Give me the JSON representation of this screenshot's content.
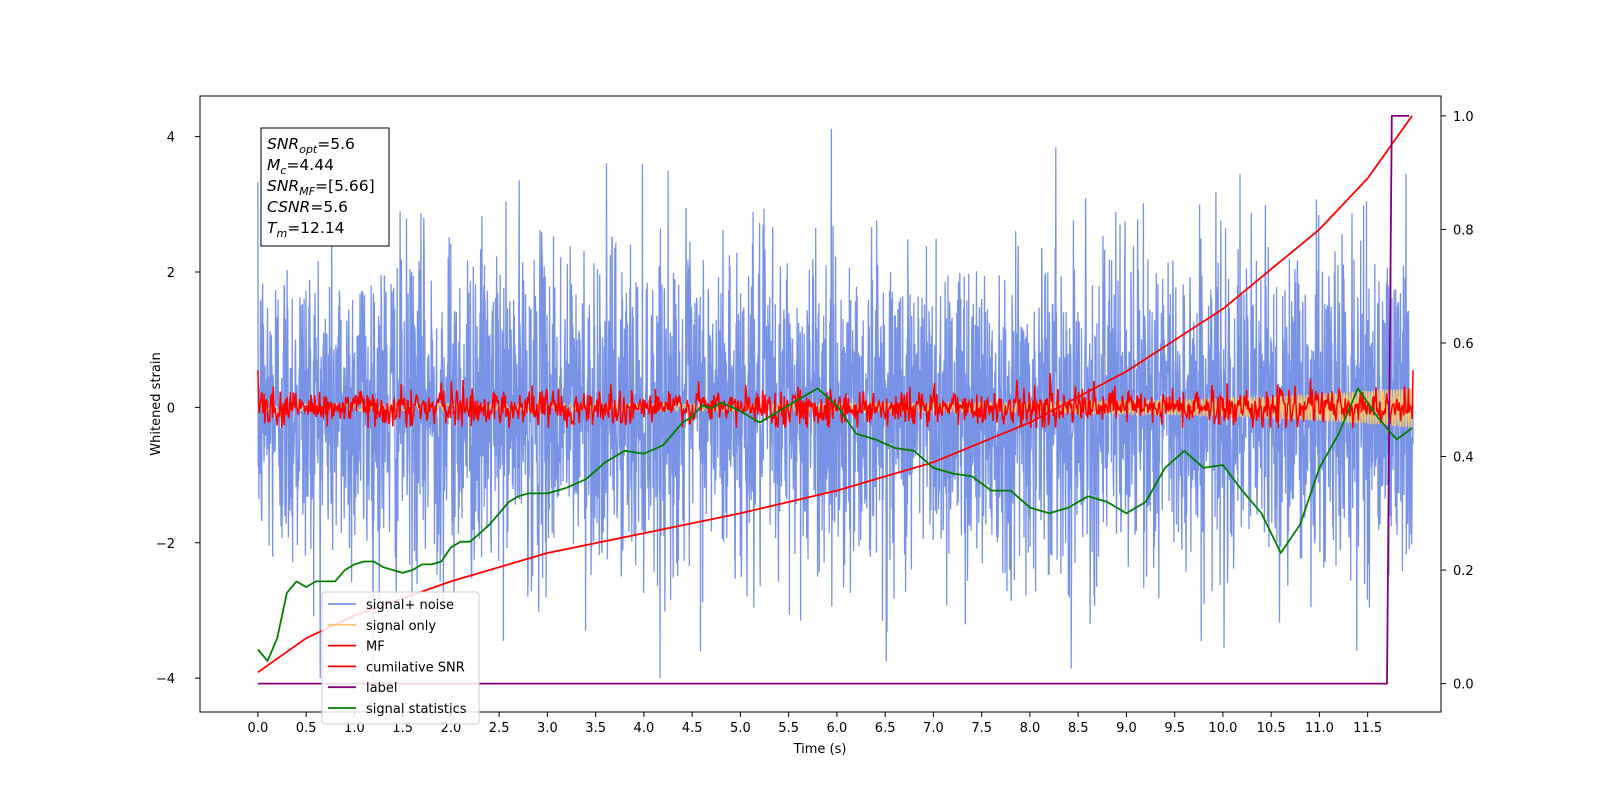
{
  "chart_data": {
    "type": "line",
    "xlabel": "Time (s)",
    "ylabel": "Whitened strain",
    "xlim": [
      -0.6,
      12.26
    ],
    "ylim": [
      -4.5,
      4.6
    ],
    "y2lim": [
      -0.05,
      1.035
    ],
    "x_ticks": [
      "0.0",
      "0.5",
      "1.0",
      "1.5",
      "2.0",
      "2.5",
      "3.0",
      "3.5",
      "4.0",
      "4.5",
      "5.0",
      "5.5",
      "6.0",
      "6.5",
      "7.0",
      "7.5",
      "8.0",
      "8.5",
      "9.0",
      "9.5",
      "10.0",
      "10.5",
      "11.0",
      "11.5"
    ],
    "y_ticks": [
      "4",
      "2",
      "0",
      "−2",
      "−4"
    ],
    "y2_ticks": [
      "1.0",
      "0.8",
      "0.6",
      "0.4",
      "0.2",
      "0.0"
    ],
    "annotation": [
      {
        "var": "SNR",
        "sub": "opt",
        "text": "=5.6"
      },
      {
        "var": "M",
        "sub": "c",
        "text": "=4.44"
      },
      {
        "var": "SNR",
        "sub": "MF",
        "text": "=[5.66]"
      },
      {
        "var": "CSNR",
        "sub": "",
        "text": "=5.6"
      },
      {
        "var": "T",
        "sub": "m",
        "text": "=12.14"
      }
    ],
    "legend_position": "lower left",
    "series": [
      {
        "name": "signal+ noise",
        "color": "#7893e6",
        "axis": "left",
        "amplitude_range": [
          -4.0,
          4.2
        ]
      },
      {
        "name": "signal only",
        "color": "#f5c873",
        "axis": "left",
        "amplitude_range": [
          -0.3,
          0.3
        ]
      },
      {
        "name": "MF",
        "color": "#ff0000",
        "axis": "left",
        "amplitude_range": [
          -0.3,
          0.55
        ]
      },
      {
        "name": "cumilative SNR",
        "color": "#ff0000",
        "axis": "right",
        "points": [
          [
            0.0,
            0.02
          ],
          [
            0.5,
            0.08
          ],
          [
            1.0,
            0.12
          ],
          [
            2.0,
            0.18
          ],
          [
            3.0,
            0.23
          ],
          [
            4.0,
            0.265
          ],
          [
            5.0,
            0.3
          ],
          [
            6.0,
            0.34
          ],
          [
            7.0,
            0.39
          ],
          [
            8.0,
            0.46
          ],
          [
            9.0,
            0.55
          ],
          [
            10.0,
            0.66
          ],
          [
            11.0,
            0.8
          ],
          [
            11.5,
            0.89
          ],
          [
            11.96,
            1.0
          ]
        ]
      },
      {
        "name": "label",
        "color": "#800080",
        "axis": "right",
        "points": [
          [
            0.0,
            0.0
          ],
          [
            11.7,
            0.0
          ],
          [
            11.75,
            1.0
          ],
          [
            11.93,
            1.0
          ]
        ]
      },
      {
        "name": "signal statistics",
        "color": "#008000",
        "axis": "right",
        "points": [
          [
            0.0,
            0.06
          ],
          [
            0.1,
            0.04
          ],
          [
            0.2,
            0.08
          ],
          [
            0.3,
            0.16
          ],
          [
            0.4,
            0.18
          ],
          [
            0.5,
            0.17
          ],
          [
            0.6,
            0.18
          ],
          [
            0.7,
            0.18
          ],
          [
            0.8,
            0.18
          ],
          [
            0.9,
            0.2
          ],
          [
            1.0,
            0.21
          ],
          [
            1.1,
            0.215
          ],
          [
            1.2,
            0.215
          ],
          [
            1.3,
            0.205
          ],
          [
            1.4,
            0.2
          ],
          [
            1.5,
            0.195
          ],
          [
            1.6,
            0.2
          ],
          [
            1.7,
            0.21
          ],
          [
            1.8,
            0.21
          ],
          [
            1.9,
            0.215
          ],
          [
            2.0,
            0.24
          ],
          [
            2.1,
            0.25
          ],
          [
            2.2,
            0.25
          ],
          [
            2.3,
            0.265
          ],
          [
            2.4,
            0.28
          ],
          [
            2.5,
            0.3
          ],
          [
            2.6,
            0.32
          ],
          [
            2.7,
            0.33
          ],
          [
            2.8,
            0.335
          ],
          [
            3.0,
            0.335
          ],
          [
            3.1,
            0.34
          ],
          [
            3.2,
            0.345
          ],
          [
            3.4,
            0.36
          ],
          [
            3.6,
            0.39
          ],
          [
            3.8,
            0.41
          ],
          [
            4.0,
            0.405
          ],
          [
            4.2,
            0.42
          ],
          [
            4.4,
            0.46
          ],
          [
            4.5,
            0.47
          ],
          [
            4.6,
            0.49
          ],
          [
            4.7,
            0.485
          ],
          [
            4.8,
            0.495
          ],
          [
            5.0,
            0.48
          ],
          [
            5.2,
            0.46
          ],
          [
            5.4,
            0.48
          ],
          [
            5.6,
            0.5
          ],
          [
            5.8,
            0.52
          ],
          [
            6.0,
            0.49
          ],
          [
            6.2,
            0.44
          ],
          [
            6.4,
            0.43
          ],
          [
            6.6,
            0.415
          ],
          [
            6.8,
            0.41
          ],
          [
            7.0,
            0.38
          ],
          [
            7.2,
            0.37
          ],
          [
            7.4,
            0.365
          ],
          [
            7.6,
            0.34
          ],
          [
            7.8,
            0.34
          ],
          [
            8.0,
            0.31
          ],
          [
            8.2,
            0.3
          ],
          [
            8.4,
            0.31
          ],
          [
            8.6,
            0.33
          ],
          [
            8.8,
            0.32
          ],
          [
            9.0,
            0.3
          ],
          [
            9.2,
            0.32
          ],
          [
            9.4,
            0.38
          ],
          [
            9.6,
            0.41
          ],
          [
            9.8,
            0.38
          ],
          [
            10.0,
            0.385
          ],
          [
            10.2,
            0.34
          ],
          [
            10.4,
            0.3
          ],
          [
            10.6,
            0.23
          ],
          [
            10.8,
            0.28
          ],
          [
            11.0,
            0.38
          ],
          [
            11.2,
            0.44
          ],
          [
            11.4,
            0.52
          ],
          [
            11.6,
            0.47
          ],
          [
            11.8,
            0.43
          ],
          [
            11.96,
            0.45
          ]
        ]
      }
    ]
  }
}
